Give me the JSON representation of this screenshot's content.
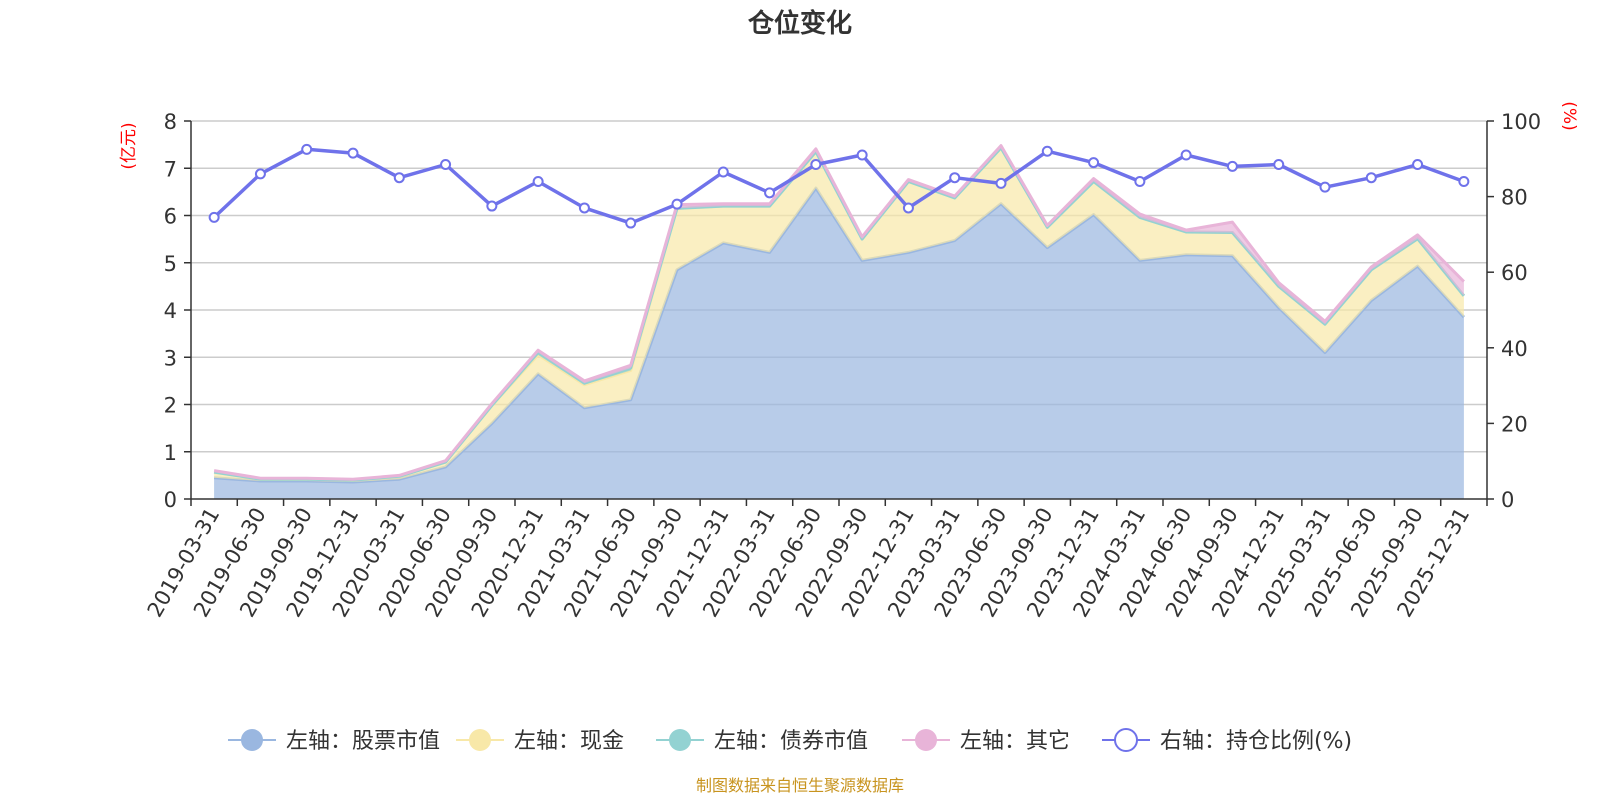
{
  "chart_data": {
    "type": "area",
    "title": "仓位变化",
    "y_left": {
      "unit_label": "(亿元)",
      "ylim": [
        0,
        8
      ],
      "ticks": [
        "0",
        "1",
        "2",
        "3",
        "4",
        "5",
        "6",
        "7",
        "8"
      ]
    },
    "y_right": {
      "unit_label": "(%)",
      "ylim": [
        0,
        100
      ],
      "ticks": [
        "0",
        "20",
        "40",
        "60",
        "80",
        "100"
      ]
    },
    "categories": [
      "2019-03-31",
      "2019-06-30",
      "2019-09-30",
      "2019-12-31",
      "2020-03-31",
      "2020-06-30",
      "2020-09-30",
      "2020-12-31",
      "2021-03-31",
      "2021-06-30",
      "2021-09-30",
      "2021-12-31",
      "2022-03-31",
      "2022-06-30",
      "2022-09-30",
      "2022-12-31",
      "2023-03-31",
      "2023-06-30",
      "2023-09-30",
      "2023-12-31",
      "2024-03-31",
      "2024-06-30",
      "2024-09-30",
      "2024-12-31",
      "2025-03-31",
      "2025-06-30",
      "2025-09-30",
      "2025-12-31"
    ],
    "series": [
      {
        "name": "左轴：股票市值",
        "axis": "left",
        "type": "stacked-area",
        "color": "#9ab7e0",
        "values": [
          0.45,
          0.38,
          0.38,
          0.36,
          0.42,
          0.68,
          1.6,
          2.65,
          1.93,
          2.1,
          4.85,
          5.42,
          5.22,
          6.58,
          5.05,
          5.22,
          5.47,
          6.25,
          5.32,
          6.02,
          5.05,
          5.17,
          5.15,
          4.05,
          3.1,
          4.2,
          4.93,
          3.85
        ]
      },
      {
        "name": "左轴：现金",
        "axis": "left",
        "type": "stacked-area",
        "color": "#f8e8a8",
        "values": [
          0.12,
          0.04,
          0.04,
          0.04,
          0.06,
          0.1,
          0.38,
          0.4,
          0.49,
          0.62,
          1.3,
          0.78,
          0.98,
          0.77,
          0.45,
          1.5,
          0.9,
          1.18,
          0.43,
          0.7,
          0.91,
          0.48,
          0.49,
          0.45,
          0.6,
          0.65,
          0.58,
          0.45
        ]
      },
      {
        "name": "左轴：债券市值",
        "axis": "left",
        "type": "stacked-area",
        "color": "#93d2d2",
        "values": [
          0,
          0,
          0,
          0,
          0,
          0,
          0,
          0.05,
          0.03,
          0.05,
          0,
          0,
          0,
          0,
          0,
          0,
          0,
          0,
          0,
          0,
          0,
          0,
          0,
          0,
          0,
          0,
          0,
          0
        ]
      },
      {
        "name": "左轴：其它",
        "axis": "left",
        "type": "stacked-area",
        "color": "#e8b4d8",
        "values": [
          0.03,
          0.02,
          0.02,
          0.02,
          0.02,
          0.03,
          0.04,
          0.05,
          0.05,
          0.06,
          0.08,
          0.05,
          0.05,
          0.06,
          0.05,
          0.04,
          0.04,
          0.05,
          0.04,
          0.06,
          0.07,
          0.04,
          0.22,
          0.08,
          0.06,
          0.06,
          0.08,
          0.3
        ]
      },
      {
        "name": "右轴：持仓比例(%)",
        "axis": "right",
        "type": "line",
        "color": "#6f72ea",
        "values": [
          74.5,
          86,
          92.5,
          91.5,
          85,
          88.5,
          77.5,
          84,
          77,
          73,
          78,
          86.5,
          81,
          88.5,
          91,
          77,
          85,
          83.5,
          92,
          89,
          84,
          91,
          88,
          88.5,
          82.5,
          85,
          88.5,
          84
        ]
      }
    ],
    "legend_position": "bottom-center",
    "grid": true
  },
  "source_note": "制图数据来自恒生聚源数据库"
}
